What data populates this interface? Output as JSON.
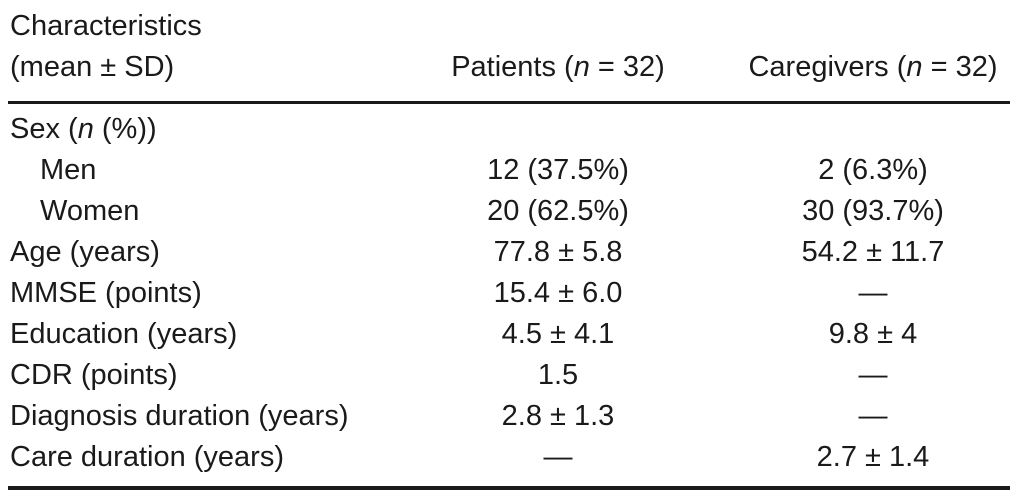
{
  "table": {
    "header": {
      "characteristics_line1": "Characteristics",
      "characteristics_line2": "(mean ± SD)",
      "patients": {
        "pre": "Patients (",
        "n": "n",
        "post": " = 32)"
      },
      "caregivers": {
        "pre": "Caregivers (",
        "n": "n",
        "post": " = 32)"
      }
    },
    "rows": [
      {
        "pre": "Sex (",
        "n": "n",
        "post": " (%))",
        "patients": "",
        "caregivers": ""
      },
      {
        "pre": "Men",
        "patients": "12 (37.5%)",
        "caregivers": "2 (6.3%)"
      },
      {
        "pre": "Women",
        "patients": "20 (62.5%)",
        "caregivers": "30 (93.7%)"
      },
      {
        "pre": "Age (years)",
        "patients": "77.8 ± 5.8",
        "caregivers": "54.2 ± 11.7"
      },
      {
        "pre": "MMSE (points)",
        "patients": "15.4 ± 6.0",
        "caregivers": "—"
      },
      {
        "pre": "Education (years)",
        "patients": "4.5 ± 4.1",
        "caregivers": "9.8 ± 4"
      },
      {
        "pre": "CDR (points)",
        "patients": "1.5",
        "caregivers": "—"
      },
      {
        "pre": "Diagnosis duration (years)",
        "patients": "2.8 ± 1.3",
        "caregivers": "—"
      },
      {
        "pre": "Care duration (years)",
        "patients": "—",
        "caregivers": "2.7 ± 1.4"
      }
    ],
    "colors": {
      "text": "#1a1a1a",
      "rule": "#1a1a1a",
      "background": "#ffffff"
    }
  }
}
